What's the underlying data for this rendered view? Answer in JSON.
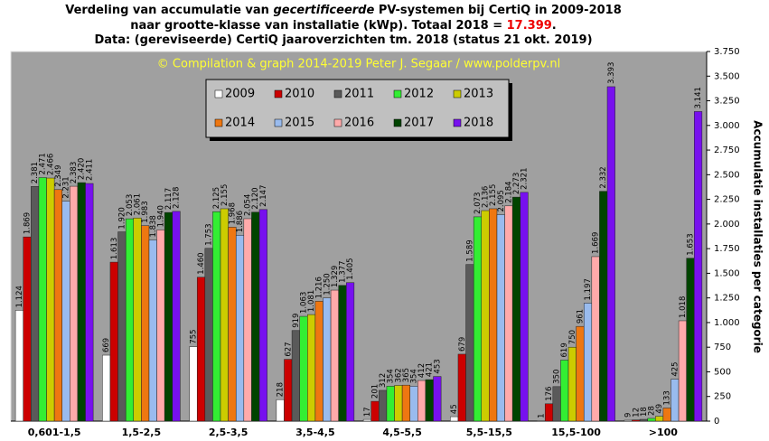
{
  "chart_data": {
    "type": "bar",
    "title_lines": [
      [
        "Verdeling van accumulatie van ",
        "gecertificeerde",
        " PV-systemen bij CertiQ in 2009-2018"
      ],
      [
        "naar grootte-klasse van installatie (kWp). Totaal 2018 = ",
        "17.399",
        "."
      ],
      [
        "Data: (gereviseerde) CertiQ jaaroverzichten tm. 2018 (status 21 okt. 2019)"
      ]
    ],
    "annotation": "© Compilation  & graph 2014-2019 Peter J. Segaar / www.polderpv.nl",
    "y2label": "Accumulatie installaties per categorie",
    "categories": [
      "0,601-1,5",
      "1,5-2,5",
      "2,5-3,5",
      "3,5-4,5",
      "4,5-5,5",
      "5,5-15,5",
      "15,5-100",
      ">100"
    ],
    "series": [
      {
        "name": "2009",
        "color": "#ffffff",
        "values": [
          1124,
          669,
          755,
          218,
          17,
          45,
          1,
          9
        ],
        "value_labels": [
          "1.124",
          "669",
          "755",
          "218",
          "17",
          "45",
          "1",
          "9"
        ]
      },
      {
        "name": "2010",
        "color": "#cc0000",
        "values": [
          1869,
          1613,
          1460,
          627,
          201,
          679,
          176,
          12
        ],
        "value_labels": [
          "1.869",
          "1.613",
          "1.460",
          "627",
          "201",
          "679",
          "176",
          "12"
        ]
      },
      {
        "name": "2011",
        "color": "#5a5a5a",
        "values": [
          2381,
          1920,
          1753,
          919,
          312,
          1589,
          350,
          18
        ],
        "value_labels": [
          "2.381",
          "1.920",
          "1.753",
          "919",
          "312",
          "1.589",
          "350",
          "18"
        ]
      },
      {
        "name": "2012",
        "color": "#33ee33",
        "values": [
          2471,
          2053,
          2125,
          1063,
          354,
          2073,
          619,
          28
        ],
        "value_labels": [
          "2.471",
          "2.053",
          "2.125",
          "1.063",
          "354",
          "2.073",
          "619",
          "28"
        ]
      },
      {
        "name": "2013",
        "color": "#cccc00",
        "values": [
          2466,
          2061,
          2155,
          1081,
          362,
          2136,
          750,
          49
        ],
        "value_labels": [
          "2.466",
          "2.061",
          "2.155",
          "1.081",
          "362",
          "2.136",
          "750",
          "49"
        ]
      },
      {
        "name": "2014",
        "color": "#ee7711",
        "values": [
          2349,
          1983,
          1968,
          1216,
          365,
          2155,
          961,
          133
        ],
        "value_labels": [
          "2.349",
          "1.983",
          "1.968",
          "1.216",
          "365",
          "2.155",
          "961",
          "133"
        ]
      },
      {
        "name": "2015",
        "color": "#99bbee",
        "values": [
          2231,
          1838,
          1886,
          1250,
          354,
          2095,
          1197,
          425
        ],
        "value_labels": [
          "2.231",
          "1.838",
          "1.886",
          "1.250",
          "354",
          "2.095",
          "1.197",
          "425"
        ]
      },
      {
        "name": "2016",
        "color": "#ffaaaa",
        "values": [
          2383,
          1940,
          2054,
          1329,
          412,
          2184,
          1669,
          1018
        ],
        "value_labels": [
          "2.383",
          "1.940",
          "2.054",
          "1.329",
          "412",
          "2.184",
          "1.669",
          "1.018"
        ]
      },
      {
        "name": "2017",
        "color": "#004400",
        "values": [
          2420,
          2117,
          2120,
          1377,
          421,
          2273,
          2332,
          1653
        ],
        "value_labels": [
          "2.420",
          "2.117",
          "2.120",
          "1.377",
          "421",
          "2.273",
          "2.332",
          "1.653"
        ]
      },
      {
        "name": "2018",
        "color": "#7711ee",
        "values": [
          2411,
          2128,
          2147,
          1405,
          453,
          2321,
          3393,
          3141
        ],
        "value_labels": [
          "2.411",
          "2.128",
          "2.147",
          "1.405",
          "453",
          "2.321",
          "3.393",
          "3.141"
        ]
      }
    ],
    "ylim": [
      0,
      3750
    ],
    "yticks": [
      0,
      {
        "value": 250,
        "label": "250"
      },
      500,
      750,
      {
        "value": 1000,
        "label": "1.000"
      },
      {
        "value": 1250,
        "label": "1.250"
      },
      {
        "value": 1500,
        "label": "1.500"
      },
      {
        "value": 1750,
        "label": "1.750"
      },
      {
        "value": 2000,
        "label": "2.000"
      },
      {
        "value": 2250,
        "label": "2.250"
      },
      {
        "value": 2500,
        "label": "2.500"
      },
      {
        "value": 2750,
        "label": "2.750"
      },
      {
        "value": 3000,
        "label": "3.000"
      },
      {
        "value": 3250,
        "label": "3.250"
      },
      {
        "value": 3500,
        "label": "3.500"
      },
      {
        "value": 3750,
        "label": "3.750"
      }
    ],
    "axis_side": "right",
    "legend": "top-left"
  }
}
